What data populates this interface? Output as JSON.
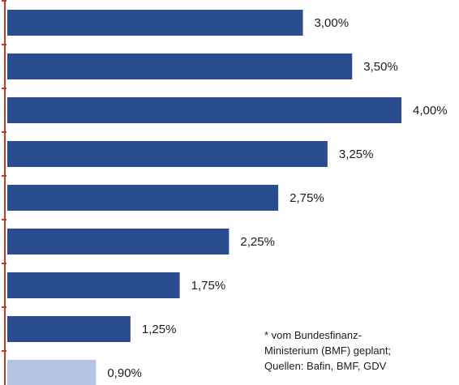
{
  "chart_data": {
    "type": "bar",
    "orientation": "horizontal",
    "values": [
      3.0,
      3.5,
      4.0,
      3.25,
      2.75,
      2.25,
      1.75,
      1.25,
      0.9
    ],
    "labels": [
      "3,00%",
      "3,50%",
      "4,00%",
      "3,25%",
      "2,75%",
      "2,25%",
      "1,75%",
      "1,25%",
      "0,90%"
    ],
    "highlighted_index": 8,
    "xlim": [
      0,
      4.5
    ],
    "grid": false,
    "colors": {
      "bar": "#2a4d8f",
      "highlight": "#b3c5e2",
      "axis": "#c0392b"
    }
  },
  "footnote": {
    "lines": [
      "* vom Bundesfinanz-",
      "Ministerium (BMF) geplant;",
      "Quellen: Bafin, BMF,  GDV"
    ]
  }
}
